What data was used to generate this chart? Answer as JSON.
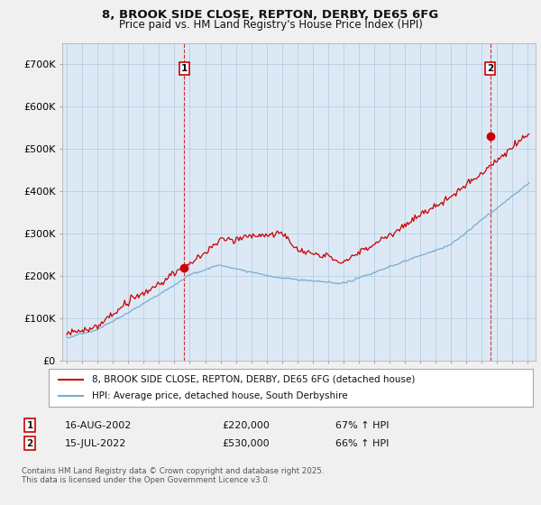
{
  "title_line1": "8, BROOK SIDE CLOSE, REPTON, DERBY, DE65 6FG",
  "title_line2": "Price paid vs. HM Land Registry's House Price Index (HPI)",
  "ylim": [
    0,
    750000
  ],
  "yticks": [
    0,
    100000,
    200000,
    300000,
    400000,
    500000,
    600000,
    700000
  ],
  "ytick_labels": [
    "£0",
    "£100K",
    "£200K",
    "£300K",
    "£400K",
    "£500K",
    "£600K",
    "£700K"
  ],
  "red_color": "#cc0000",
  "blue_color": "#7aadce",
  "sale1_year": 2002.625,
  "sale1_price": 220000,
  "sale1_label": "1",
  "sale2_year": 2022.542,
  "sale2_price": 530000,
  "sale2_label": "2",
  "legend_label_red": "8, BROOK SIDE CLOSE, REPTON, DERBY, DE65 6FG (detached house)",
  "legend_label_blue": "HPI: Average price, detached house, South Derbyshire",
  "annotation1_date": "16-AUG-2002",
  "annotation1_price": "£220,000",
  "annotation1_hpi": "67% ↑ HPI",
  "annotation2_date": "15-JUL-2022",
  "annotation2_price": "£530,000",
  "annotation2_hpi": "66% ↑ HPI",
  "footer": "Contains HM Land Registry data © Crown copyright and database right 2025.\nThis data is licensed under the Open Government Licence v3.0.",
  "background_color": "#f0f0f0",
  "plot_bg_color": "#dce9f5"
}
